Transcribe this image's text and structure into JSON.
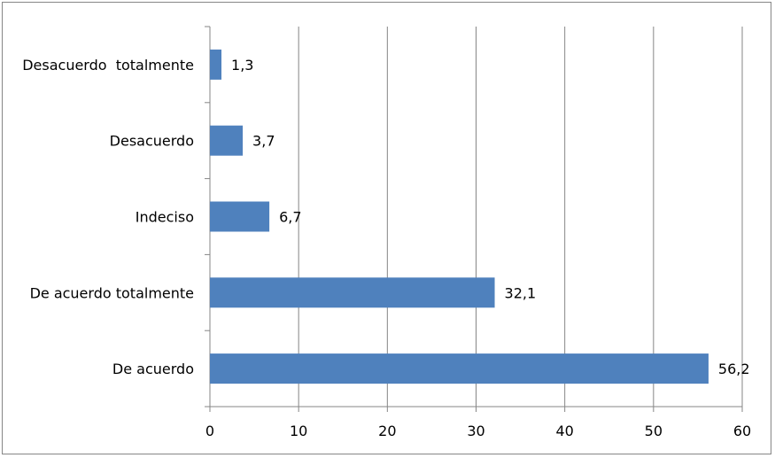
{
  "chart_data": {
    "type": "bar",
    "orientation": "horizontal",
    "categories": [
      "De acuerdo",
      "De acuerdo totalmente",
      "Indeciso",
      "Desacuerdo",
      "Desacuerdo  totalmente"
    ],
    "values": [
      56.2,
      32.1,
      6.7,
      3.7,
      1.3
    ],
    "data_labels": [
      "56,2",
      "32,1",
      "6,7",
      "3,7",
      "1,3"
    ],
    "xlim": [
      0,
      60
    ],
    "x_ticks": [
      0,
      10,
      20,
      30,
      40,
      50,
      60
    ],
    "grid": "vertical",
    "legend": "none",
    "colors": {
      "bar": "#4f81bd",
      "grid": "#868686",
      "axis": "#868686"
    }
  }
}
